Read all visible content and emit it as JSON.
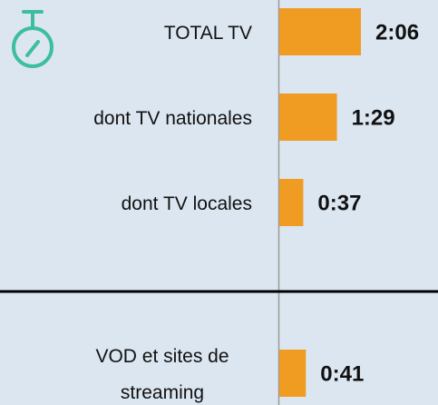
{
  "chart_data": {
    "type": "bar",
    "orientation": "horizontal",
    "categories": [
      "TOTAL TV",
      "dont TV nationales",
      "dont TV locales",
      "VOD et sites de streaming"
    ],
    "values": [
      126,
      89,
      37,
      41
    ],
    "value_labels": [
      "2:06",
      "1:29",
      "0:37",
      "0:41"
    ],
    "color": "#f09c23"
  }
}
